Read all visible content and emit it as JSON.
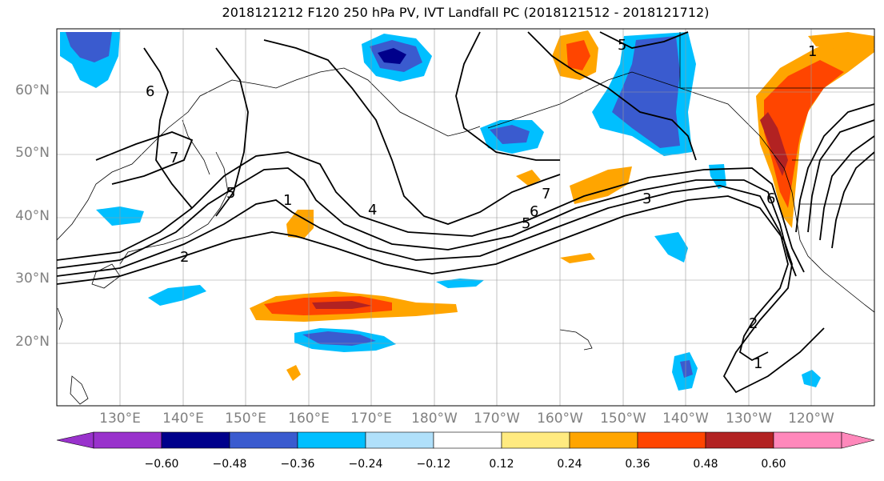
{
  "title": "2018121212 F120 250 hPa PV, IVT Landfall PC (2018121512 - 2018121712)",
  "map": {
    "lat_labels": [
      "60°N",
      "50°N",
      "40°N",
      "30°N",
      "20°N"
    ],
    "lon_labels": [
      "130°E",
      "140°E",
      "150°E",
      "160°E",
      "170°E",
      "180°W",
      "170°W",
      "160°W",
      "150°W",
      "140°W",
      "130°W",
      "120°W"
    ],
    "contour_labels": [
      "6",
      "7",
      "1",
      "5",
      "1",
      "4",
      "2",
      "7",
      "6",
      "5",
      "3",
      "6",
      "5",
      "2",
      "1"
    ]
  },
  "colorbar": {
    "tick_labels": [
      "−0.60",
      "−0.48",
      "−0.36",
      "−0.24",
      "−0.12",
      "0.12",
      "0.24",
      "0.36",
      "0.48",
      "0.60"
    ],
    "colors": [
      "#9932cc",
      "#00008b",
      "#3a5bcf",
      "#00bfff",
      "#b0e0fa",
      "#ffffff",
      "#ffea80",
      "#ffa500",
      "#ff4500",
      "#b22222",
      "#ff88bb"
    ]
  }
}
